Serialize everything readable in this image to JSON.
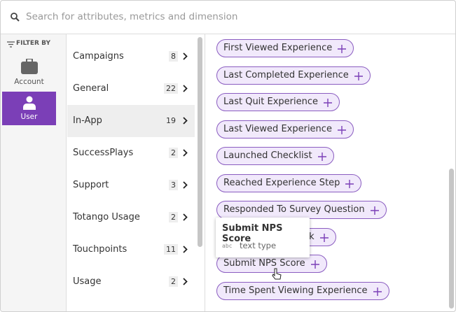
{
  "search": {
    "placeholder": "Search for attributes, metrics and dimension"
  },
  "sidebar": {
    "filter_label": "FILTER BY",
    "items": [
      {
        "label": "Account"
      },
      {
        "label": "User"
      }
    ]
  },
  "categories": [
    {
      "name": "Campaigns",
      "count": "8"
    },
    {
      "name": "General",
      "count": "22"
    },
    {
      "name": "In-App",
      "count": "19"
    },
    {
      "name": "SuccessPlays",
      "count": "2"
    },
    {
      "name": "Support",
      "count": "3"
    },
    {
      "name": "Totango Usage",
      "count": "2"
    },
    {
      "name": "Touchpoints",
      "count": "11"
    },
    {
      "name": "Usage",
      "count": "2"
    }
  ],
  "chips": [
    "First Viewed Experience",
    "Last Completed Experience",
    "Last Quit Experience",
    "Last Viewed Experience",
    "Launched Checklist",
    "Reached Experience Step",
    "Responded To Survey Question",
    "ck",
    "Submit NPS Score",
    "Time Spent Viewing Experience"
  ],
  "tooltip": {
    "title": "Submit NPS Score",
    "type_code": "abc",
    "type_label": "text type"
  }
}
